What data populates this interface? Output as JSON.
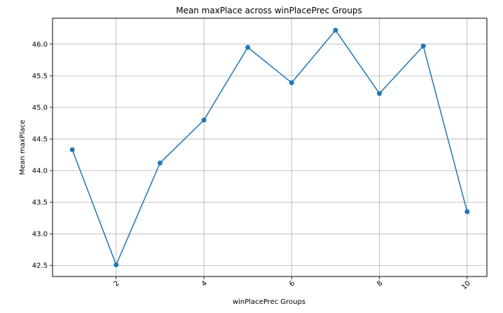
{
  "chart_data": {
    "type": "line",
    "title": "Mean maxPlace across winPlacePrec Groups",
    "xlabel": "winPlacePrec Groups",
    "ylabel": "Mean maxPlace",
    "x": [
      1,
      2,
      3,
      4,
      5,
      6,
      7,
      8,
      9,
      10
    ],
    "series": [
      {
        "values": [
          44.33,
          42.51,
          44.12,
          44.8,
          45.95,
          45.39,
          46.22,
          45.22,
          45.97,
          43.35
        ]
      }
    ],
    "xticks": [
      2,
      4,
      6,
      8,
      10
    ],
    "xtick_labels": [
      "2",
      "4",
      "6",
      "8",
      "10"
    ],
    "xtick_rotation": 45,
    "yticks": [
      42.5,
      43.0,
      43.5,
      44.0,
      44.5,
      45.0,
      45.5,
      46.0
    ],
    "ytick_labels": [
      "42.5",
      "43.0",
      "43.5",
      "44.0",
      "44.5",
      "45.0",
      "45.5",
      "46.0"
    ],
    "xlim": [
      0.55,
      10.45
    ],
    "ylim": [
      42.325,
      46.41
    ],
    "grid": true,
    "legend": "none",
    "line_color": "#1f77b4"
  }
}
